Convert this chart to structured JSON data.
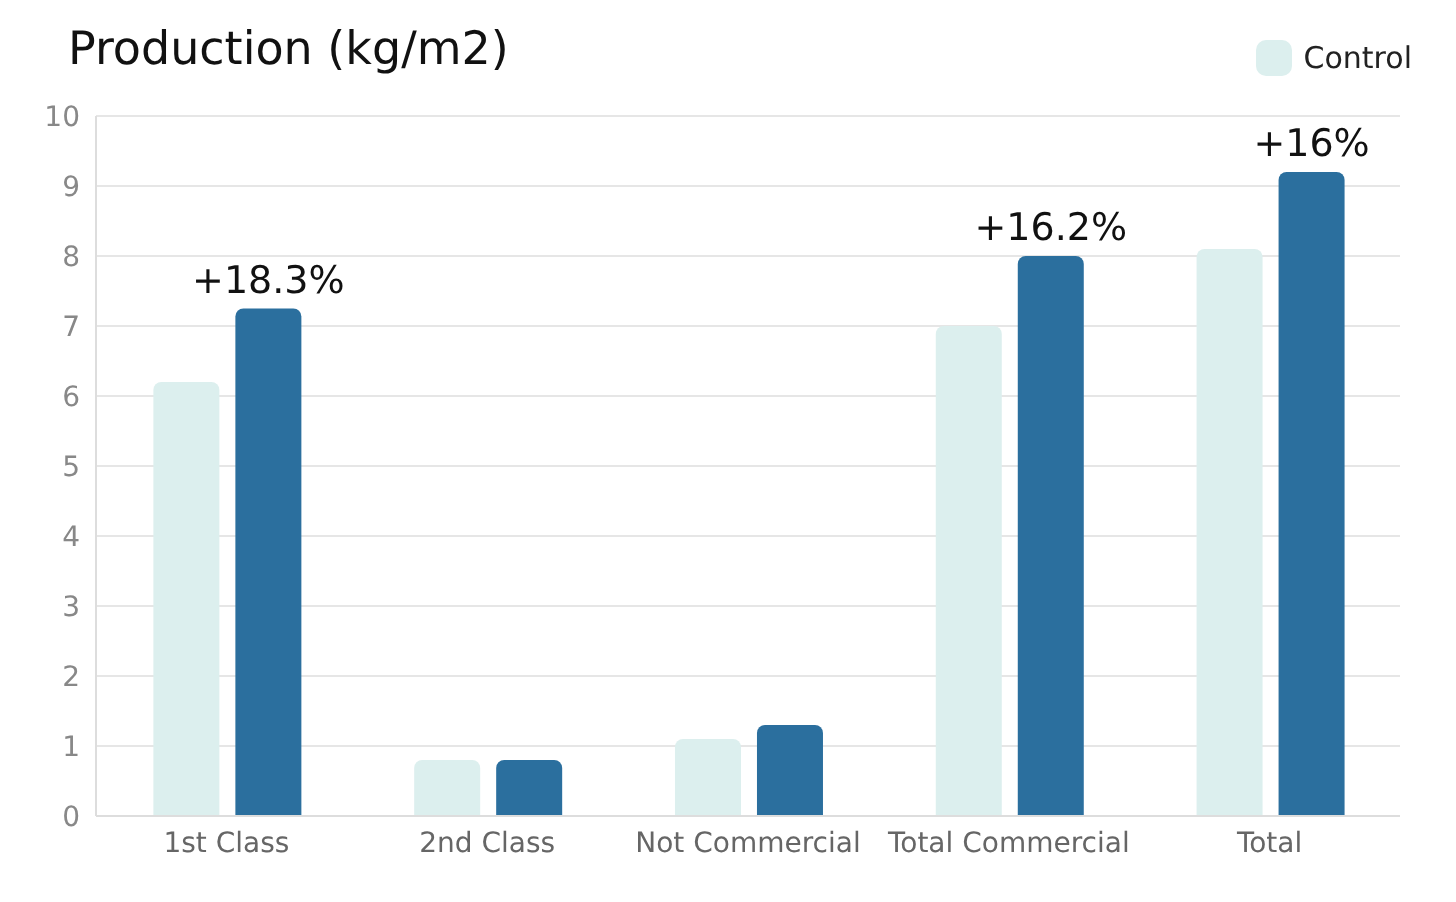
{
  "chart_data": {
    "type": "bar",
    "title": "Production (kg/m2)",
    "categories": [
      "1st Class",
      "2nd Class",
      "Not Commercial",
      "Total Commercial",
      "Total"
    ],
    "series": [
      {
        "name": "Control",
        "color": "#dcefee",
        "values": [
          6.2,
          0.8,
          1.1,
          7.0,
          8.1
        ]
      },
      {
        "color": "#2b6f9e",
        "values": [
          7.25,
          0.8,
          1.3,
          8.0,
          9.2
        ]
      }
    ],
    "ylim": [
      0,
      10
    ],
    "yticks": [
      0,
      1,
      2,
      3,
      4,
      5,
      6,
      7,
      8,
      9,
      10
    ],
    "grid": "y",
    "legend": "top right",
    "annotations": [
      "+18.3%",
      "+16.2%",
      "+16%"
    ]
  }
}
